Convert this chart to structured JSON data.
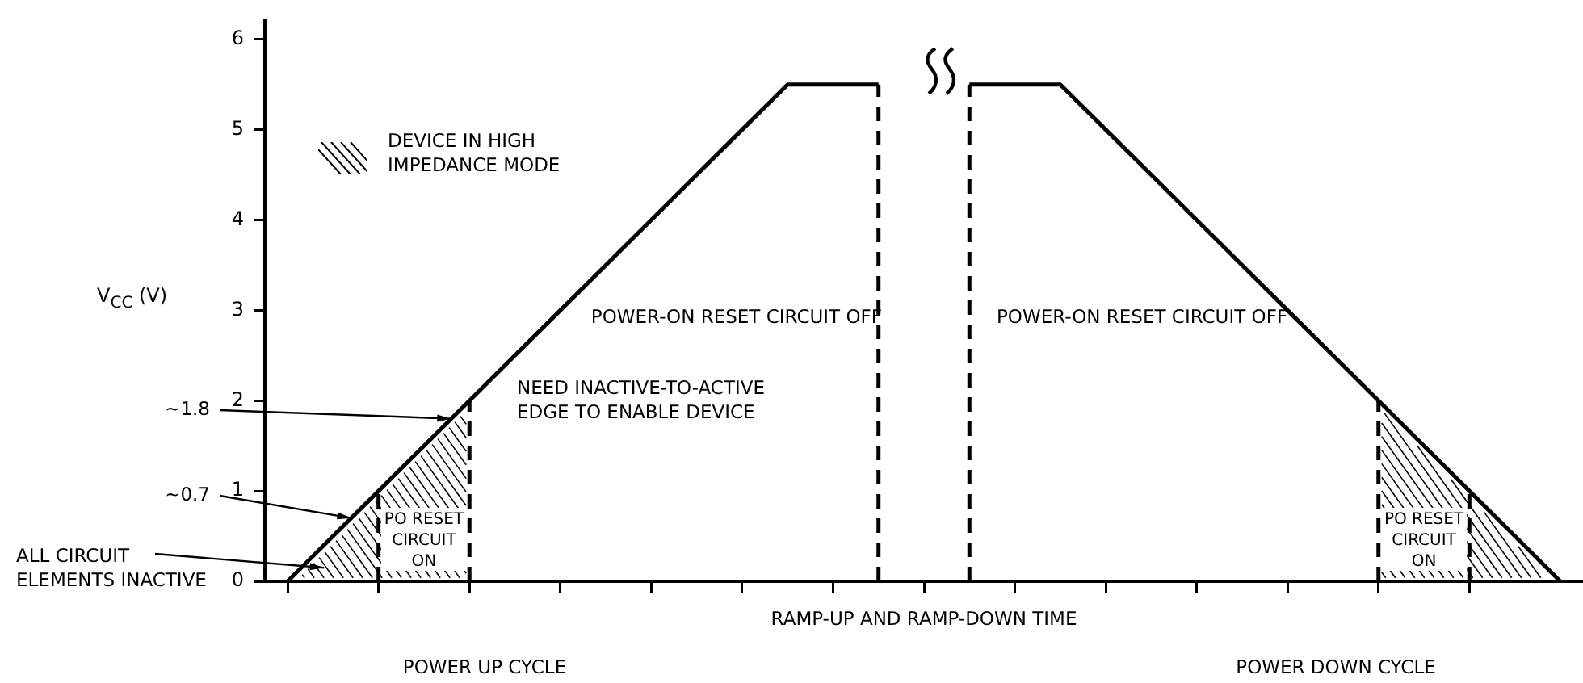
{
  "chart_data": {
    "type": "line",
    "ylabel": "V$_{CC}$ (V)",
    "xlabel": "RAMP-UP AND RAMP-DOWN TIME",
    "categories": [
      null,
      null,
      null,
      null,
      null,
      null,
      null,
      null,
      null,
      null,
      null,
      null,
      null,
      null,
      null,
      null,
      null,
      null,
      null,
      null,
      null,
      null,
      null,
      null,
      null,
      null,
      null,
      null,
      null
    ],
    "series": [
      {
        "color": "#000000",
        "values": [
          0,
          0.5,
          1,
          1.5,
          2,
          2.5,
          3,
          3.5,
          4,
          4.5,
          5,
          5.5,
          5.5,
          5.5,
          null,
          5.5,
          5.5,
          5.5,
          5,
          4.5,
          4,
          3.5,
          3,
          2.5,
          2,
          1.5,
          1,
          0.5,
          0
        ]
      }
    ],
    "ylim": [
      0,
      6.2
    ],
    "yticks": [
      0,
      1,
      2,
      3,
      4,
      5,
      6
    ],
    "tick_labels": "y",
    "grid": false,
    "marker": "none",
    "line_style": "solid",
    "annotations": [
      "~1.8",
      "~0.7",
      "ALL CIRCUIT\nELEMENTS INACTIVE",
      "DEVICE IN HIGH\nIMPEDANCE MODE",
      "POWER-ON RESET CIRCUIT OFF",
      "POWER-ON RESET CIRCUIT OFF",
      "NEED INACTIVE-TO-ACTIVE\nEDGE TO ENABLE DEVICE",
      "PO RESET\nCIRCUIT\nON",
      "PO RESET\nCIRCUIT\nON",
      "POWER UP CYCLE",
      "POWER DOWN CYCLE"
    ]
  }
}
